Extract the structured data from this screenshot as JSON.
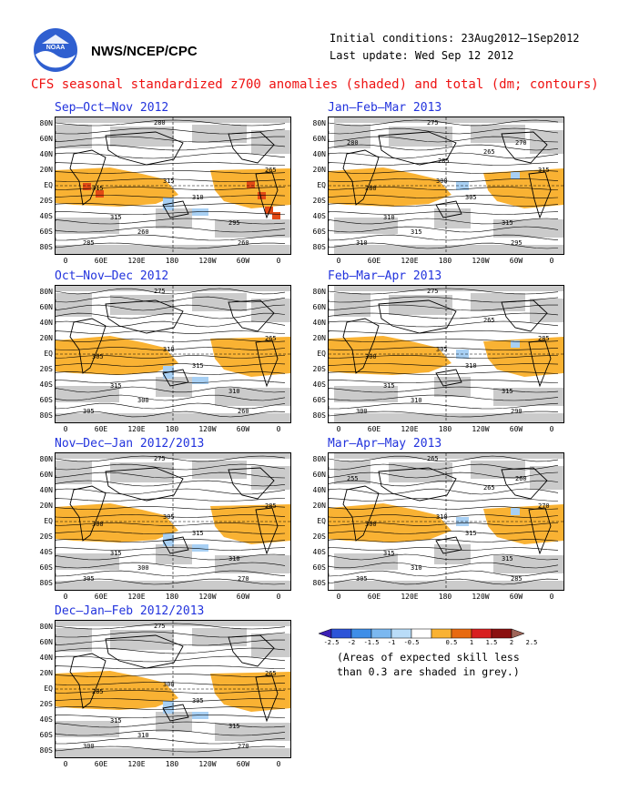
{
  "header": {
    "agency": "NWS/NCEP/CPC",
    "initial_conditions": "Initial conditions: 23Aug2012–1Sep2012",
    "last_update": "Last update: Wed Sep 12 2012",
    "main_title": "CFS seasonal standardized z700 anomalies (shaded) and total (dm; contours)"
  },
  "panels": [
    {
      "title": "Sep–Oct–Nov 2012",
      "contour_labels": [
        "280",
        "315",
        "315",
        "310",
        "315",
        "295",
        "260",
        "285",
        "260",
        "265"
      ]
    },
    {
      "title": "Jan–Feb–Mar 2013",
      "contour_labels": [
        "275",
        "280",
        "300",
        "305",
        "310",
        "315",
        "315",
        "310",
        "295",
        "315",
        "265",
        "270",
        "280",
        "285"
      ]
    },
    {
      "title": "Oct–Nov–Dec 2012",
      "contour_labels": [
        "275",
        "305",
        "310",
        "315",
        "315",
        "310",
        "300",
        "305",
        "260",
        "265"
      ]
    },
    {
      "title": "Feb–Mar–Apr 2013",
      "contour_labels": [
        "275",
        "300",
        "305",
        "310",
        "315",
        "315",
        "310",
        "300",
        "290",
        "285",
        "265"
      ]
    },
    {
      "title": "Nov–Dec–Jan 2012/2013",
      "contour_labels": [
        "275",
        "300",
        "305",
        "315",
        "315",
        "310",
        "300",
        "305",
        "270",
        "285"
      ]
    },
    {
      "title": "Mar–Apr–May 2013",
      "contour_labels": [
        "265",
        "300",
        "310",
        "315",
        "315",
        "315",
        "310",
        "305",
        "285",
        "270",
        "265",
        "260",
        "255"
      ]
    },
    {
      "title": "Dec–Jan–Feb 2012/2013",
      "contour_labels": [
        "275",
        "285",
        "300",
        "305",
        "315",
        "315",
        "310",
        "300",
        "270",
        "265"
      ]
    }
  ],
  "axes": {
    "lat_labels": [
      "80N",
      "60N",
      "40N",
      "20N",
      "EQ",
      "20S",
      "40S",
      "60S",
      "80S"
    ],
    "lon_labels": [
      "0",
      "60E",
      "120E",
      "180",
      "120W",
      "60W",
      "0"
    ]
  },
  "legend": {
    "ticks": [
      "-2.5",
      "-2",
      "-1.5",
      "-1",
      "-0.5",
      "0.5",
      "1",
      "1.5",
      "2",
      "2.5"
    ],
    "colors": [
      "#3b1fb5",
      "#2c54d8",
      "#3e8ee8",
      "#7bb8f0",
      "#b9dcf8",
      "#ffffff",
      "#f9b233",
      "#e86a10",
      "#d82020",
      "#8b1010",
      "#9e6458"
    ],
    "note_line1": "(Areas of expected skill less",
    "note_line2": "than 0.3 are shaded in grey.)"
  },
  "colors": {
    "positive_anomaly": "#f9b233",
    "strong_positive": "#e34a15",
    "negative_anomaly": "#a8d0f4",
    "low_skill": "#c8c8c8",
    "title_red": "#ee1111",
    "panel_title_blue": "#2233dd"
  }
}
